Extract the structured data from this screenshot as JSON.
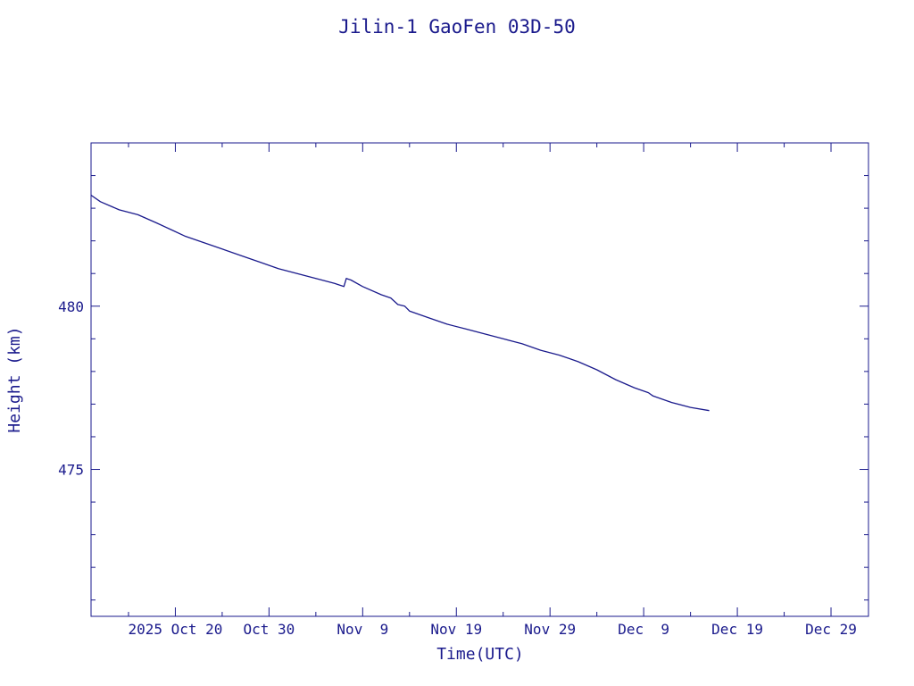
{
  "chart_data": {
    "type": "line",
    "title": "Jilin-1 GaoFen 03D-50",
    "xlabel": "Time(UTC)",
    "ylabel": "Height (km)",
    "x_start": "2025-10-11",
    "x_end": "2026-01-02",
    "ylim": [
      470.5,
      485
    ],
    "yticks": [
      475,
      480
    ],
    "xticks": [
      {
        "date": "2025-10-20",
        "label": "2025 Oct 20"
      },
      {
        "date": "2025-10-30",
        "label": "Oct 30"
      },
      {
        "date": "2025-11-09",
        "label": "Nov  9"
      },
      {
        "date": "2025-11-19",
        "label": "Nov 19"
      },
      {
        "date": "2025-11-29",
        "label": "Nov 29"
      },
      {
        "date": "2025-12-09",
        "label": "Dec  9"
      },
      {
        "date": "2025-12-19",
        "label": "Dec 19"
      },
      {
        "date": "2025-12-29",
        "label": "Dec 29"
      }
    ],
    "grid": false,
    "line_color": "#1a1a8c",
    "series": [
      {
        "x": [
          "2025-10-11 00:00",
          "2025-10-12 00:00",
          "2025-10-14 00:00",
          "2025-10-16 00:00",
          "2025-10-18 00:00",
          "2025-10-19 12:00",
          "2025-10-21 00:00",
          "2025-10-23 00:00",
          "2025-10-25 00:00",
          "2025-10-27 00:00",
          "2025-10-29 00:00",
          "2025-10-31 00:00",
          "2025-11-02 00:00",
          "2025-11-04 00:00",
          "2025-11-06 00:00",
          "2025-11-07 00:00",
          "2025-11-07 06:00",
          "2025-11-07 18:00",
          "2025-11-09 00:00",
          "2025-11-11 00:00",
          "2025-11-12 00:00",
          "2025-11-12 18:00",
          "2025-11-13 12:00",
          "2025-11-14 00:00",
          "2025-11-16 00:00",
          "2025-11-18 00:00",
          "2025-11-20 00:00",
          "2025-11-22 00:00",
          "2025-11-24 00:00",
          "2025-11-26 00:00",
          "2025-11-28 00:00",
          "2025-11-30 00:00",
          "2025-12-02 00:00",
          "2025-12-04 00:00",
          "2025-12-06 00:00",
          "2025-12-08 00:00",
          "2025-12-09 12:00",
          "2025-12-10 00:00",
          "2025-12-10 12:00",
          "2025-12-12 00:00",
          "2025-12-14 00:00",
          "2025-12-16 00:00"
        ],
        "y": [
          483.4,
          483.2,
          482.95,
          482.8,
          482.55,
          482.35,
          482.15,
          481.95,
          481.75,
          481.55,
          481.35,
          481.15,
          481.0,
          480.85,
          480.7,
          480.6,
          480.85,
          480.8,
          480.6,
          480.35,
          480.25,
          480.05,
          480.0,
          479.85,
          479.65,
          479.45,
          479.3,
          479.15,
          479.0,
          478.85,
          478.65,
          478.5,
          478.3,
          478.05,
          477.75,
          477.5,
          477.35,
          477.25,
          477.2,
          477.05,
          476.9,
          476.8
        ]
      }
    ]
  }
}
